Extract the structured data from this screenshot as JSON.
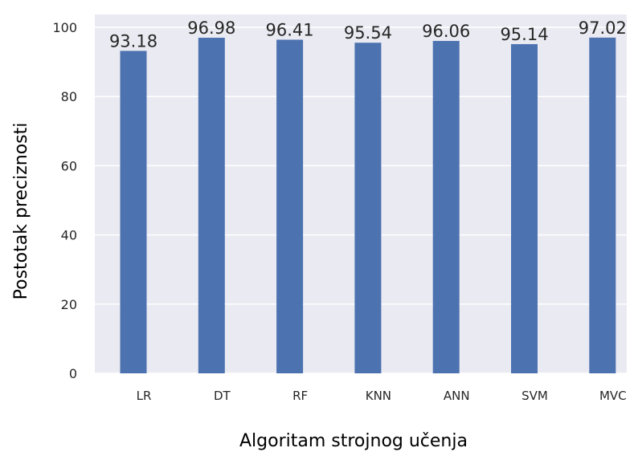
{
  "chart_data": {
    "type": "bar",
    "title": "",
    "xlabel": "Algoritam strojnog učenja",
    "ylabel": "Postotak preciznosti",
    "categories": [
      "LR",
      "DT",
      "RF",
      "KNN",
      "ANN",
      "SVM",
      "MVC"
    ],
    "values": [
      93.18,
      96.98,
      96.41,
      95.54,
      96.06,
      95.14,
      97.02
    ],
    "value_labels": [
      "93.18",
      "96.98",
      "96.41",
      "95.54",
      "96.06",
      "95.14",
      "97.02"
    ],
    "ylim": [
      0,
      100
    ],
    "yticks": [
      0,
      20,
      40,
      60,
      80,
      100
    ],
    "grid": true,
    "colors": {
      "bar": "#4c72b0",
      "plot_background": "#eaeaf2",
      "grid": "#ffffff"
    }
  }
}
